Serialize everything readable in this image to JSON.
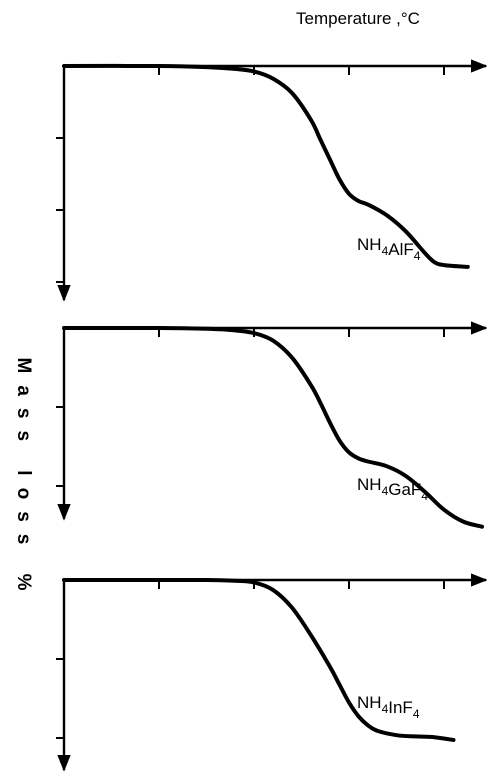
{
  "chart_data": [
    {
      "type": "line",
      "xlabel": "Temperature ,°C",
      "ylabel": "Mass loss %",
      "xlim": [
        0,
        440
      ],
      "ylim": [
        0,
        60
      ],
      "x_ticks": [
        "0",
        "100",
        "200",
        "300",
        "400"
      ],
      "y_ticks": [
        "0",
        "20",
        "40",
        "60"
      ],
      "series": [
        {
          "name": "NH4AlF4",
          "x": [
            0,
            100,
            150,
            180,
            200,
            220,
            240,
            260,
            270,
            280,
            290,
            300,
            310,
            320,
            340,
            360,
            380,
            390,
            400,
            425
          ],
          "y": [
            0,
            0,
            0.3,
            0.8,
            1.5,
            3.5,
            7.5,
            15,
            20.5,
            26,
            31.5,
            35.5,
            37.5,
            38.5,
            41.5,
            46,
            52,
            54.5,
            55.3,
            55.8
          ]
        }
      ]
    },
    {
      "type": "line",
      "xlim": [
        0,
        440
      ],
      "ylim": [
        0,
        44
      ],
      "x_ticks": [
        "0",
        "100",
        "200",
        "300",
        "400"
      ],
      "y_ticks": [
        "0",
        "20",
        "40"
      ],
      "series": [
        {
          "name": "NH4GaF4",
          "x": [
            0,
            100,
            150,
            180,
            200,
            220,
            240,
            260,
            270,
            280,
            290,
            300,
            310,
            320,
            340,
            360,
            380,
            400,
            420,
            440
          ],
          "y": [
            0,
            0,
            0.2,
            0.6,
            1.3,
            3.2,
            7.5,
            14.5,
            19,
            24,
            28.5,
            31.5,
            33,
            33.8,
            35,
            37.5,
            41.5,
            46,
            49,
            50.3
          ]
        }
      ]
    },
    {
      "type": "line",
      "xlim": [
        0,
        440
      ],
      "ylim": [
        0,
        44
      ],
      "x_ticks": [
        "0",
        "100",
        "200",
        "300",
        "400"
      ],
      "y_ticks": [
        "0",
        "20",
        "40"
      ],
      "series": [
        {
          "name": "NH4InF4",
          "x": [
            0,
            100,
            150,
            180,
            200,
            220,
            240,
            260,
            280,
            290,
            300,
            310,
            320,
            330,
            350,
            370,
            390,
            410
          ],
          "y": [
            0,
            0,
            0,
            0.2,
            0.6,
            2.5,
            7,
            14,
            22,
            26.5,
            31,
            34.5,
            36.8,
            38.2,
            39.3,
            39.6,
            39.8,
            40.5
          ]
        }
      ]
    }
  ]
}
